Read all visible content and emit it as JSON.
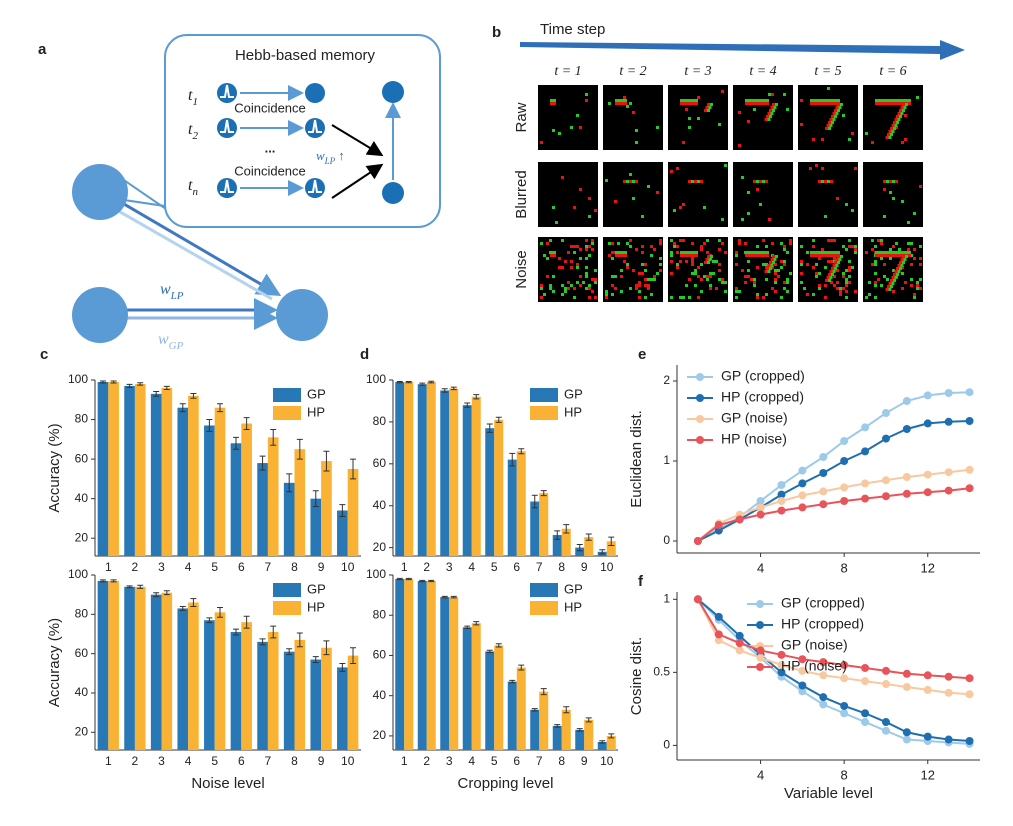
{
  "panel_a": {
    "label": "a",
    "title": "Hebb-based memory",
    "times": [
      {
        "base": "t",
        "sub": "1"
      },
      {
        "base": "t",
        "sub": "2"
      },
      {
        "base": "t",
        "sub": "n"
      }
    ],
    "ellipsis": "...",
    "coincidence": [
      "Coincidence",
      "Coincidence"
    ],
    "w_lp_up": {
      "base": "w",
      "sub": "LP",
      "arrow": "↑"
    },
    "w_lp": {
      "base": "w",
      "sub": "LP"
    },
    "w_gp": {
      "base": "w",
      "sub": "GP"
    }
  },
  "panel_b": {
    "label": "b",
    "arrow_label": "Time step",
    "steps": [
      "t = 1",
      "t = 2",
      "t = 3",
      "t = 4",
      "t = 5",
      "t = 6"
    ],
    "rows": [
      "Raw",
      "Blurred",
      "Noise"
    ]
  },
  "chart_data": [
    {
      "type": "bar",
      "panel_label": "c",
      "ylabel": "Accuracy (%)",
      "categories": [
        "1",
        "2",
        "3",
        "4",
        "5",
        "6",
        "7",
        "8",
        "9",
        "10"
      ],
      "series": [
        {
          "name": "GP",
          "color": "#2878b5",
          "values": [
            99,
            97,
            93,
            86,
            77,
            68,
            58,
            48,
            40,
            34
          ],
          "errors": [
            0.5,
            0.8,
            1.2,
            2,
            3,
            3,
            3.5,
            4.5,
            4,
            3
          ]
        },
        {
          "name": "HP",
          "color": "#f9b233",
          "values": [
            99,
            98,
            96,
            92,
            86,
            78,
            71,
            65,
            59,
            55
          ],
          "errors": [
            0.5,
            0.6,
            0.8,
            1.2,
            2,
            3,
            4,
            5,
            5,
            5
          ]
        }
      ],
      "ylim": [
        11,
        100
      ],
      "yticks": [
        20,
        40,
        60,
        80,
        100
      ],
      "legend": "upper right"
    },
    {
      "type": "bar",
      "ylabel": "Accuracy (%)",
      "xlabel": "Noise level",
      "categories": [
        "1",
        "2",
        "3",
        "4",
        "5",
        "6",
        "7",
        "8",
        "9",
        "10"
      ],
      "series": [
        {
          "name": "GP",
          "color": "#2878b5",
          "values": [
            97,
            94,
            90,
            83,
            77,
            71,
            66,
            61,
            57,
            53
          ],
          "errors": [
            0.5,
            0.5,
            1,
            1,
            1.2,
            1.5,
            1.5,
            1.5,
            1.5,
            2
          ]
        },
        {
          "name": "HP",
          "color": "#f9b233",
          "values": [
            97,
            94,
            91,
            86,
            81,
            76,
            71,
            67,
            63,
            59
          ],
          "errors": [
            0.5,
            0.8,
            1,
            2,
            2.5,
            3,
            3,
            3.5,
            3.5,
            4
          ]
        }
      ],
      "ylim": [
        11,
        100
      ],
      "yticks": [
        20,
        40,
        60,
        80,
        100
      ],
      "legend": "upper right"
    },
    {
      "type": "bar",
      "panel_label": "d",
      "categories": [
        "1",
        "2",
        "3",
        "4",
        "5",
        "6",
        "7",
        "8",
        "9",
        "10"
      ],
      "series": [
        {
          "name": "GP",
          "color": "#2878b5",
          "values": [
            99,
            98,
            95,
            88,
            77,
            62,
            42,
            26,
            20,
            18
          ],
          "errors": [
            0.3,
            0.5,
            0.8,
            1,
            2,
            3,
            3,
            2,
            1.5,
            1
          ]
        },
        {
          "name": "HP",
          "color": "#f9b233",
          "values": [
            99,
            99,
            96,
            92,
            81,
            66,
            46,
            29,
            25,
            23
          ],
          "errors": [
            0.3,
            0.4,
            0.6,
            1,
            1.2,
            1.2,
            1.2,
            2,
            1.5,
            2
          ]
        }
      ],
      "ylim": [
        16,
        100
      ],
      "yticks": [
        20,
        40,
        60,
        80,
        100
      ],
      "legend": "upper right"
    },
    {
      "type": "bar",
      "xlabel": "Cropping level",
      "categories": [
        "1",
        "2",
        "3",
        "4",
        "5",
        "6",
        "7",
        "8",
        "9",
        "10"
      ],
      "series": [
        {
          "name": "GP",
          "color": "#2878b5",
          "values": [
            98,
            97,
            89,
            74,
            62,
            47,
            33,
            25,
            23,
            17
          ],
          "errors": [
            0.3,
            0.3,
            0.4,
            0.6,
            0.6,
            0.6,
            0.6,
            0.6,
            0.6,
            0.6
          ]
        },
        {
          "name": "HP",
          "color": "#f9b233",
          "values": [
            98,
            97,
            89,
            76,
            65,
            54,
            42,
            33,
            28,
            20
          ],
          "errors": [
            0.3,
            0.3,
            0.4,
            0.8,
            0.8,
            1.2,
            1.5,
            1.5,
            1,
            1
          ]
        }
      ],
      "ylim": [
        13,
        100
      ],
      "yticks": [
        20,
        40,
        60,
        80,
        100
      ],
      "legend": "upper right"
    },
    {
      "type": "line",
      "panel_label": "e",
      "ylabel": "Euclidean dist.",
      "x": [
        1,
        2,
        3,
        4,
        5,
        6,
        7,
        8,
        9,
        10,
        11,
        12,
        13,
        14
      ],
      "series": [
        {
          "name": "GP (cropped)",
          "color": "#9ecae9",
          "values": [
            0,
            0.15,
            0.3,
            0.5,
            0.7,
            0.88,
            1.05,
            1.25,
            1.42,
            1.6,
            1.75,
            1.82,
            1.85,
            1.86
          ]
        },
        {
          "name": "HP (cropped)",
          "color": "#1f6fb0",
          "values": [
            0,
            0.13,
            0.27,
            0.42,
            0.58,
            0.72,
            0.85,
            1.0,
            1.12,
            1.28,
            1.4,
            1.47,
            1.49,
            1.5
          ]
        },
        {
          "name": "GP (noise)",
          "color": "#f8c9a0",
          "values": [
            0,
            0.22,
            0.33,
            0.42,
            0.5,
            0.57,
            0.62,
            0.67,
            0.72,
            0.76,
            0.8,
            0.83,
            0.86,
            0.89
          ]
        },
        {
          "name": "HP (noise)",
          "color": "#e8545a",
          "values": [
            0,
            0.2,
            0.27,
            0.33,
            0.38,
            0.42,
            0.46,
            0.5,
            0.53,
            0.56,
            0.59,
            0.61,
            0.63,
            0.66
          ]
        }
      ],
      "xlim": [
        0,
        14.5
      ],
      "xticks": [
        4,
        8,
        12
      ],
      "ylim": [
        -0.15,
        2.2
      ],
      "yticks": [
        0,
        1,
        2
      ],
      "legend": "upper left"
    },
    {
      "type": "line",
      "panel_label": "f",
      "ylabel": "Cosine dist.",
      "xlabel": "Variable level",
      "x": [
        1,
        2,
        3,
        4,
        5,
        6,
        7,
        8,
        9,
        10,
        11,
        12,
        13,
        14
      ],
      "series": [
        {
          "name": "GP (cropped)",
          "color": "#9ecae9",
          "values": [
            1,
            0.86,
            0.72,
            0.6,
            0.47,
            0.37,
            0.28,
            0.22,
            0.16,
            0.1,
            0.04,
            0.03,
            0.02,
            0.01
          ]
        },
        {
          "name": "HP (cropped)",
          "color": "#1f6fb0",
          "values": [
            1,
            0.88,
            0.75,
            0.62,
            0.5,
            0.41,
            0.33,
            0.27,
            0.22,
            0.16,
            0.09,
            0.06,
            0.04,
            0.03
          ]
        },
        {
          "name": "GP (noise)",
          "color": "#f8c9a0",
          "values": [
            1,
            0.72,
            0.65,
            0.6,
            0.55,
            0.51,
            0.48,
            0.46,
            0.44,
            0.42,
            0.4,
            0.38,
            0.36,
            0.35
          ]
        },
        {
          "name": "HP (noise)",
          "color": "#e8545a",
          "values": [
            1,
            0.76,
            0.7,
            0.65,
            0.62,
            0.59,
            0.57,
            0.55,
            0.53,
            0.51,
            0.49,
            0.48,
            0.47,
            0.46
          ]
        }
      ],
      "xlim": [
        0,
        14.5
      ],
      "xticks": [
        4,
        8,
        12
      ],
      "ylim": [
        -0.1,
        1.05
      ],
      "yticks": [
        0,
        0.5,
        1
      ],
      "legend": "upper right"
    }
  ]
}
